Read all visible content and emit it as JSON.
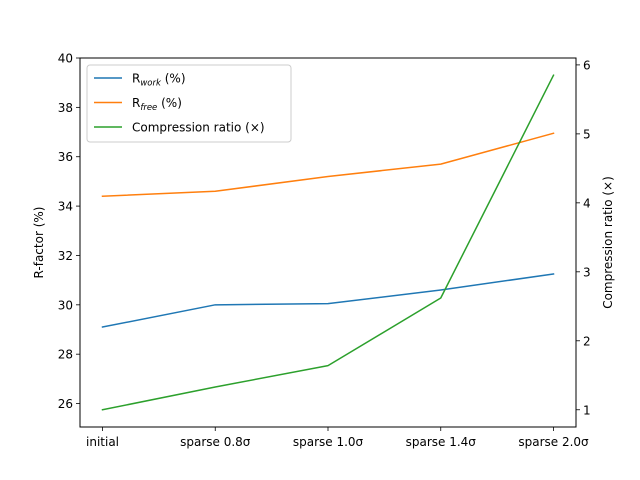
{
  "chart_data": {
    "type": "line",
    "categories": [
      "initial",
      "sparse 0.8σ",
      "sparse 1.0σ",
      "sparse 1.4σ",
      "sparse 2.0σ"
    ],
    "ylabel": "R-factor (%)",
    "y2label": "Compression ratio (×)",
    "ylim": [
      25.05,
      40.0
    ],
    "y2lim": [
      0.75,
      6.1
    ],
    "yticks": [
      26,
      28,
      30,
      32,
      34,
      36,
      38,
      40
    ],
    "y2ticks": [
      1,
      2,
      3,
      4,
      5,
      6
    ],
    "grid": false,
    "legend_position": "top-left",
    "series": [
      {
        "name": "R_work (%)",
        "legend_base": "R",
        "legend_sub": "work",
        "legend_suffix": " (%)",
        "axis": "left",
        "color": "#1f77b4",
        "values": [
          29.1,
          30.0,
          30.05,
          30.6,
          31.25
        ]
      },
      {
        "name": "R_free (%)",
        "legend_base": "R",
        "legend_sub": "free",
        "legend_suffix": " (%)",
        "axis": "left",
        "color": "#ff7f0e",
        "values": [
          34.4,
          34.6,
          35.2,
          35.7,
          36.95
        ]
      },
      {
        "name": "Compression ratio (×)",
        "legend_base": "Compression ratio (×)",
        "legend_sub": "",
        "legend_suffix": "",
        "axis": "right",
        "color": "#2ca02c",
        "values": [
          1.0,
          1.33,
          1.64,
          2.62,
          5.85
        ]
      }
    ]
  }
}
